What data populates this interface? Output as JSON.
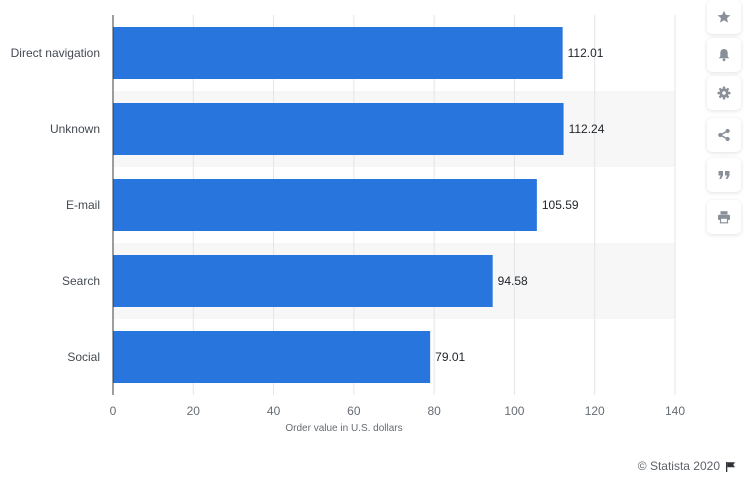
{
  "chart_data": {
    "type": "bar",
    "orientation": "horizontal",
    "categories": [
      "Direct navigation",
      "Unknown",
      "E-mail",
      "Search",
      "Social"
    ],
    "values": [
      112.01,
      112.24,
      105.59,
      94.58,
      79.01
    ],
    "value_labels": [
      "112.01",
      "112.24",
      "105.59",
      "94.58",
      "79.01"
    ],
    "xlabel": "Order value in U.S. dollars",
    "ylabel": "",
    "xlim": [
      0,
      140
    ],
    "ticks": [
      0,
      20,
      40,
      60,
      80,
      100,
      120,
      140
    ],
    "tick_labels": [
      "0",
      "20",
      "40",
      "60",
      "80",
      "100",
      "120",
      "140"
    ],
    "grid": true,
    "bar_color": "#2876dd"
  },
  "toolbar": {
    "buttons": [
      {
        "name": "favorite-button",
        "icon": "star-icon"
      },
      {
        "name": "notification-button",
        "icon": "bell-icon"
      },
      {
        "name": "settings-button",
        "icon": "gear-icon"
      },
      {
        "name": "share-button",
        "icon": "share-icon"
      },
      {
        "name": "cite-button",
        "icon": "quote-icon"
      },
      {
        "name": "print-button",
        "icon": "printer-icon"
      }
    ],
    "icon_color": "#8a9099"
  },
  "footer": {
    "credit": "© Statista 2020",
    "flag_icon": "flag-icon"
  }
}
